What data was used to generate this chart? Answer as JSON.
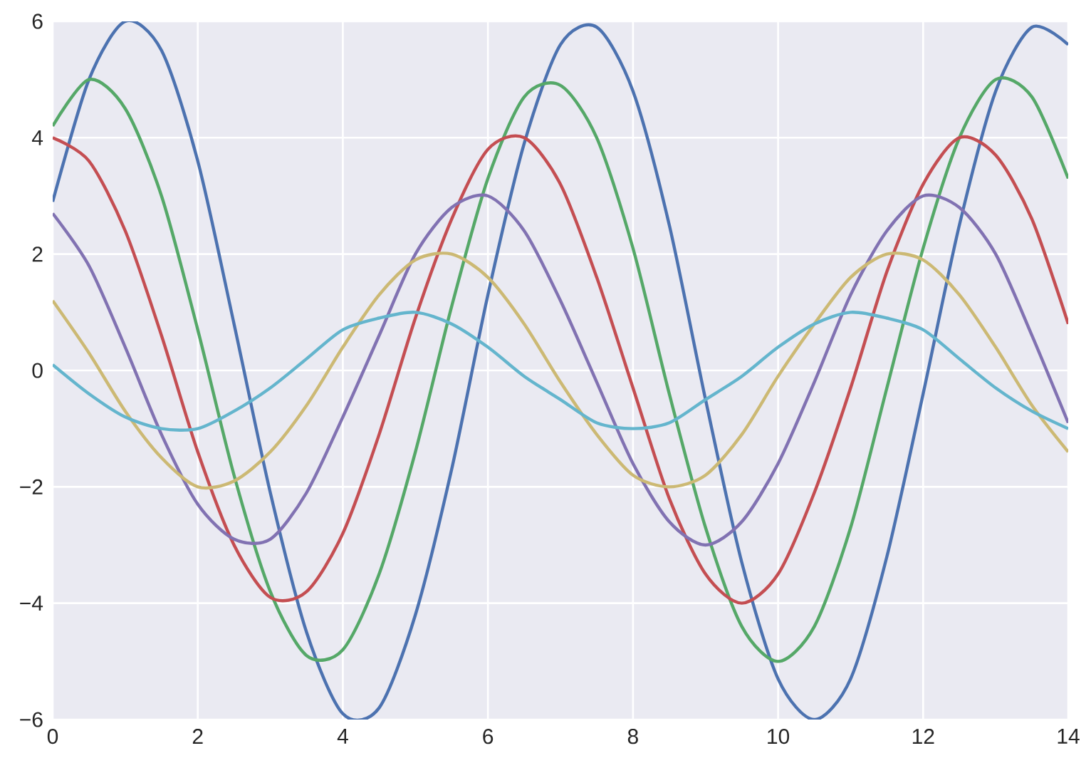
{
  "chart_data": {
    "type": "line",
    "x": [
      0,
      0.5,
      1,
      1.5,
      2,
      2.5,
      3,
      3.5,
      4,
      4.5,
      5,
      5.5,
      6,
      6.5,
      7,
      7.5,
      8,
      8.5,
      9,
      9.5,
      10,
      10.5,
      11,
      11.5,
      12,
      12.5,
      13,
      13.5,
      14
    ],
    "series": [
      {
        "color": "#4c72b0",
        "values": [
          2.9,
          5.0,
          6.0,
          5.5,
          3.6,
          0.8,
          -2.1,
          -4.5,
          -5.9,
          -5.8,
          -4.2,
          -1.7,
          1.3,
          3.9,
          5.6,
          5.9,
          4.8,
          2.5,
          -0.5,
          -3.3,
          -5.3,
          -6.0,
          -5.3,
          -3.2,
          -0.4,
          2.5,
          4.8,
          5.9,
          5.6
        ]
      },
      {
        "color": "#55a868",
        "values": [
          4.2,
          5.0,
          4.5,
          3.0,
          0.7,
          -1.8,
          -3.8,
          -4.9,
          -4.8,
          -3.5,
          -1.4,
          1.1,
          3.3,
          4.7,
          4.9,
          4.0,
          2.1,
          -0.4,
          -2.7,
          -4.4,
          -5.0,
          -4.4,
          -2.7,
          -0.3,
          2.1,
          4.0,
          5.0,
          4.7,
          3.3
        ]
      },
      {
        "color": "#c44e52",
        "values": [
          4.0,
          3.6,
          2.4,
          0.6,
          -1.4,
          -3.0,
          -3.9,
          -3.8,
          -2.8,
          -1.1,
          0.9,
          2.6,
          3.8,
          4.0,
          3.2,
          1.6,
          -0.3,
          -2.2,
          -3.5,
          -4.0,
          -3.5,
          -2.1,
          -0.3,
          1.7,
          3.2,
          4.0,
          3.7,
          2.6,
          0.8
        ]
      },
      {
        "color": "#8172b2",
        "values": [
          2.7,
          1.8,
          0.4,
          -1.1,
          -2.3,
          -2.9,
          -2.9,
          -2.1,
          -0.8,
          0.6,
          2.0,
          2.8,
          3.0,
          2.4,
          1.2,
          -0.2,
          -1.6,
          -2.6,
          -3.0,
          -2.6,
          -1.6,
          -0.2,
          1.3,
          2.4,
          3.0,
          2.8,
          2.0,
          0.6,
          -0.9
        ]
      },
      {
        "color": "#ccb974",
        "values": [
          1.2,
          0.3,
          -0.7,
          -1.5,
          -2.0,
          -1.9,
          -1.4,
          -0.6,
          0.4,
          1.3,
          1.9,
          2.0,
          1.6,
          0.8,
          -0.2,
          -1.1,
          -1.8,
          -2.0,
          -1.8,
          -1.1,
          -0.1,
          0.8,
          1.6,
          2.0,
          1.9,
          1.3,
          0.4,
          -0.6,
          -1.4
        ]
      },
      {
        "color": "#64b5cd",
        "values": [
          0.1,
          -0.4,
          -0.8,
          -1.0,
          -1.0,
          -0.7,
          -0.3,
          0.2,
          0.7,
          0.9,
          1.0,
          0.8,
          0.4,
          -0.1,
          -0.5,
          -0.9,
          -1.0,
          -0.9,
          -0.5,
          -0.1,
          0.4,
          0.8,
          1.0,
          0.9,
          0.7,
          0.2,
          -0.3,
          -0.7,
          -1.0
        ]
      }
    ],
    "xlim": [
      0,
      14
    ],
    "ylim": [
      -6,
      6
    ],
    "xticks": [
      0,
      2,
      4,
      6,
      8,
      10,
      12,
      14
    ],
    "yticks": [
      {
        "value": -6,
        "label": "−6"
      },
      {
        "value": -4,
        "label": "−4"
      },
      {
        "value": -2,
        "label": "−2"
      },
      0,
      2,
      4,
      6
    ],
    "grid": true
  }
}
